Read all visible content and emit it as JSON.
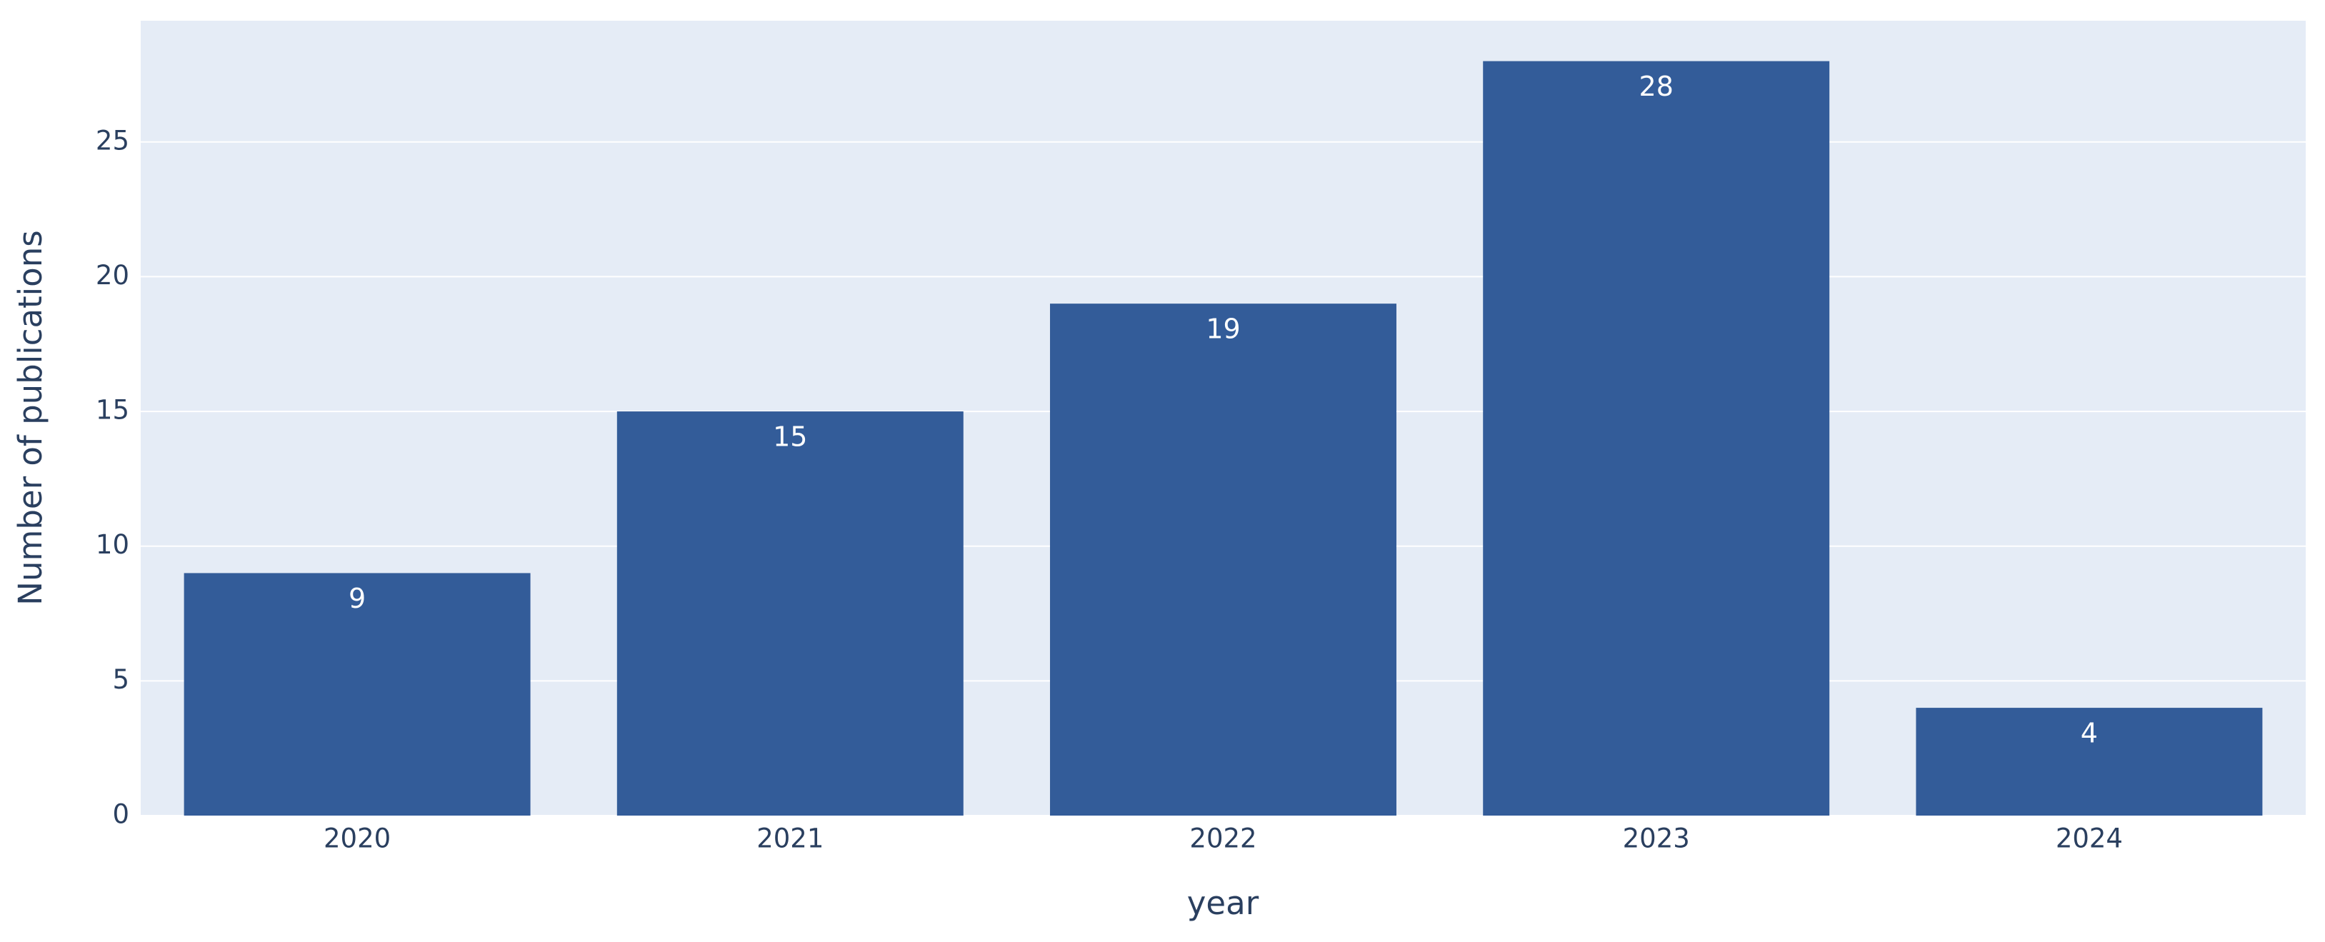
{
  "chart_data": {
    "type": "bar",
    "categories": [
      "2020",
      "2021",
      "2022",
      "2023",
      "2024"
    ],
    "values": [
      9,
      15,
      19,
      28,
      4
    ],
    "color": "#335c99",
    "ylim": [
      0,
      29.5
    ],
    "yticks": [
      0,
      5,
      10,
      15,
      20,
      25
    ],
    "grid": true,
    "x_label": "year",
    "y_label": "Number of publications",
    "show_value_labels": true
  }
}
